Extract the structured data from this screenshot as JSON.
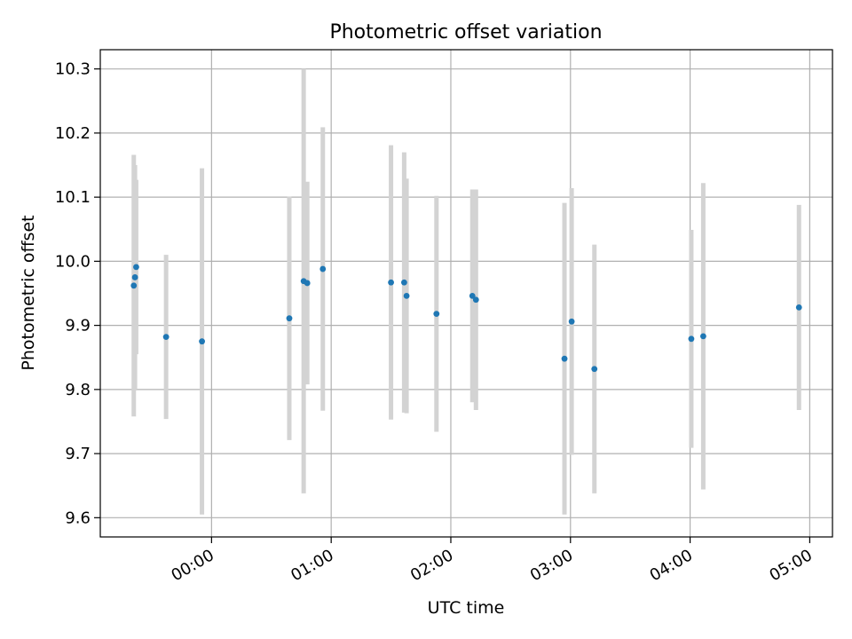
{
  "chart_data": {
    "type": "scatter",
    "title": "Photometric offset variation",
    "xlabel": "UTC time",
    "ylabel": "Photometric offset",
    "x_unit": "hours since 00:00 UTC",
    "xlim": [
      -0.93,
      5.19
    ],
    "ylim": [
      9.57,
      10.33
    ],
    "x_ticks": [
      {
        "value": 0,
        "label": "00:00"
      },
      {
        "value": 1,
        "label": "01:00"
      },
      {
        "value": 2,
        "label": "02:00"
      },
      {
        "value": 3,
        "label": "03:00"
      },
      {
        "value": 4,
        "label": "04:00"
      },
      {
        "value": 5,
        "label": "05:00"
      }
    ],
    "y_ticks": [
      {
        "value": 9.6,
        "label": "9.6"
      },
      {
        "value": 9.7,
        "label": "9.7"
      },
      {
        "value": 9.8,
        "label": "9.8"
      },
      {
        "value": 9.9,
        "label": "9.9"
      },
      {
        "value": 10.0,
        "label": "10.0"
      },
      {
        "value": 10.1,
        "label": "10.1"
      },
      {
        "value": 10.2,
        "label": "10.2"
      },
      {
        "value": 10.3,
        "label": "10.3"
      }
    ],
    "grid": true,
    "point_color": "#1f77b4",
    "errorbar_color": "#d3d3d3",
    "series": [
      {
        "name": "offset",
        "points": [
          {
            "x": -0.65,
            "y": 9.962,
            "yerr": 0.204
          },
          {
            "x": -0.64,
            "y": 9.975,
            "yerr": 0.175
          },
          {
            "x": -0.63,
            "y": 9.991,
            "yerr": 0.136
          },
          {
            "x": -0.38,
            "y": 9.882,
            "yerr": 0.128
          },
          {
            "x": -0.08,
            "y": 9.875,
            "yerr": 0.27
          },
          {
            "x": 0.65,
            "y": 9.911,
            "yerr": 0.19
          },
          {
            "x": 0.77,
            "y": 9.969,
            "yerr": 0.331
          },
          {
            "x": 0.8,
            "y": 9.966,
            "yerr": 0.158
          },
          {
            "x": 0.93,
            "y": 9.988,
            "yerr": 0.221
          },
          {
            "x": 1.5,
            "y": 9.967,
            "yerr": 0.214
          },
          {
            "x": 1.61,
            "y": 9.967,
            "yerr": 0.203
          },
          {
            "x": 1.63,
            "y": 9.946,
            "yerr": 0.183
          },
          {
            "x": 1.88,
            "y": 9.918,
            "yerr": 0.184
          },
          {
            "x": 2.18,
            "y": 9.946,
            "yerr": 0.166
          },
          {
            "x": 2.21,
            "y": 9.94,
            "yerr": 0.172
          },
          {
            "x": 2.95,
            "y": 9.848,
            "yerr": 0.243
          },
          {
            "x": 3.01,
            "y": 9.906,
            "yerr": 0.208
          },
          {
            "x": 3.2,
            "y": 9.832,
            "yerr": 0.194
          },
          {
            "x": 4.01,
            "y": 9.879,
            "yerr": 0.17
          },
          {
            "x": 4.11,
            "y": 9.883,
            "yerr": 0.239
          },
          {
            "x": 4.91,
            "y": 9.928,
            "yerr": 0.16
          }
        ]
      }
    ]
  }
}
